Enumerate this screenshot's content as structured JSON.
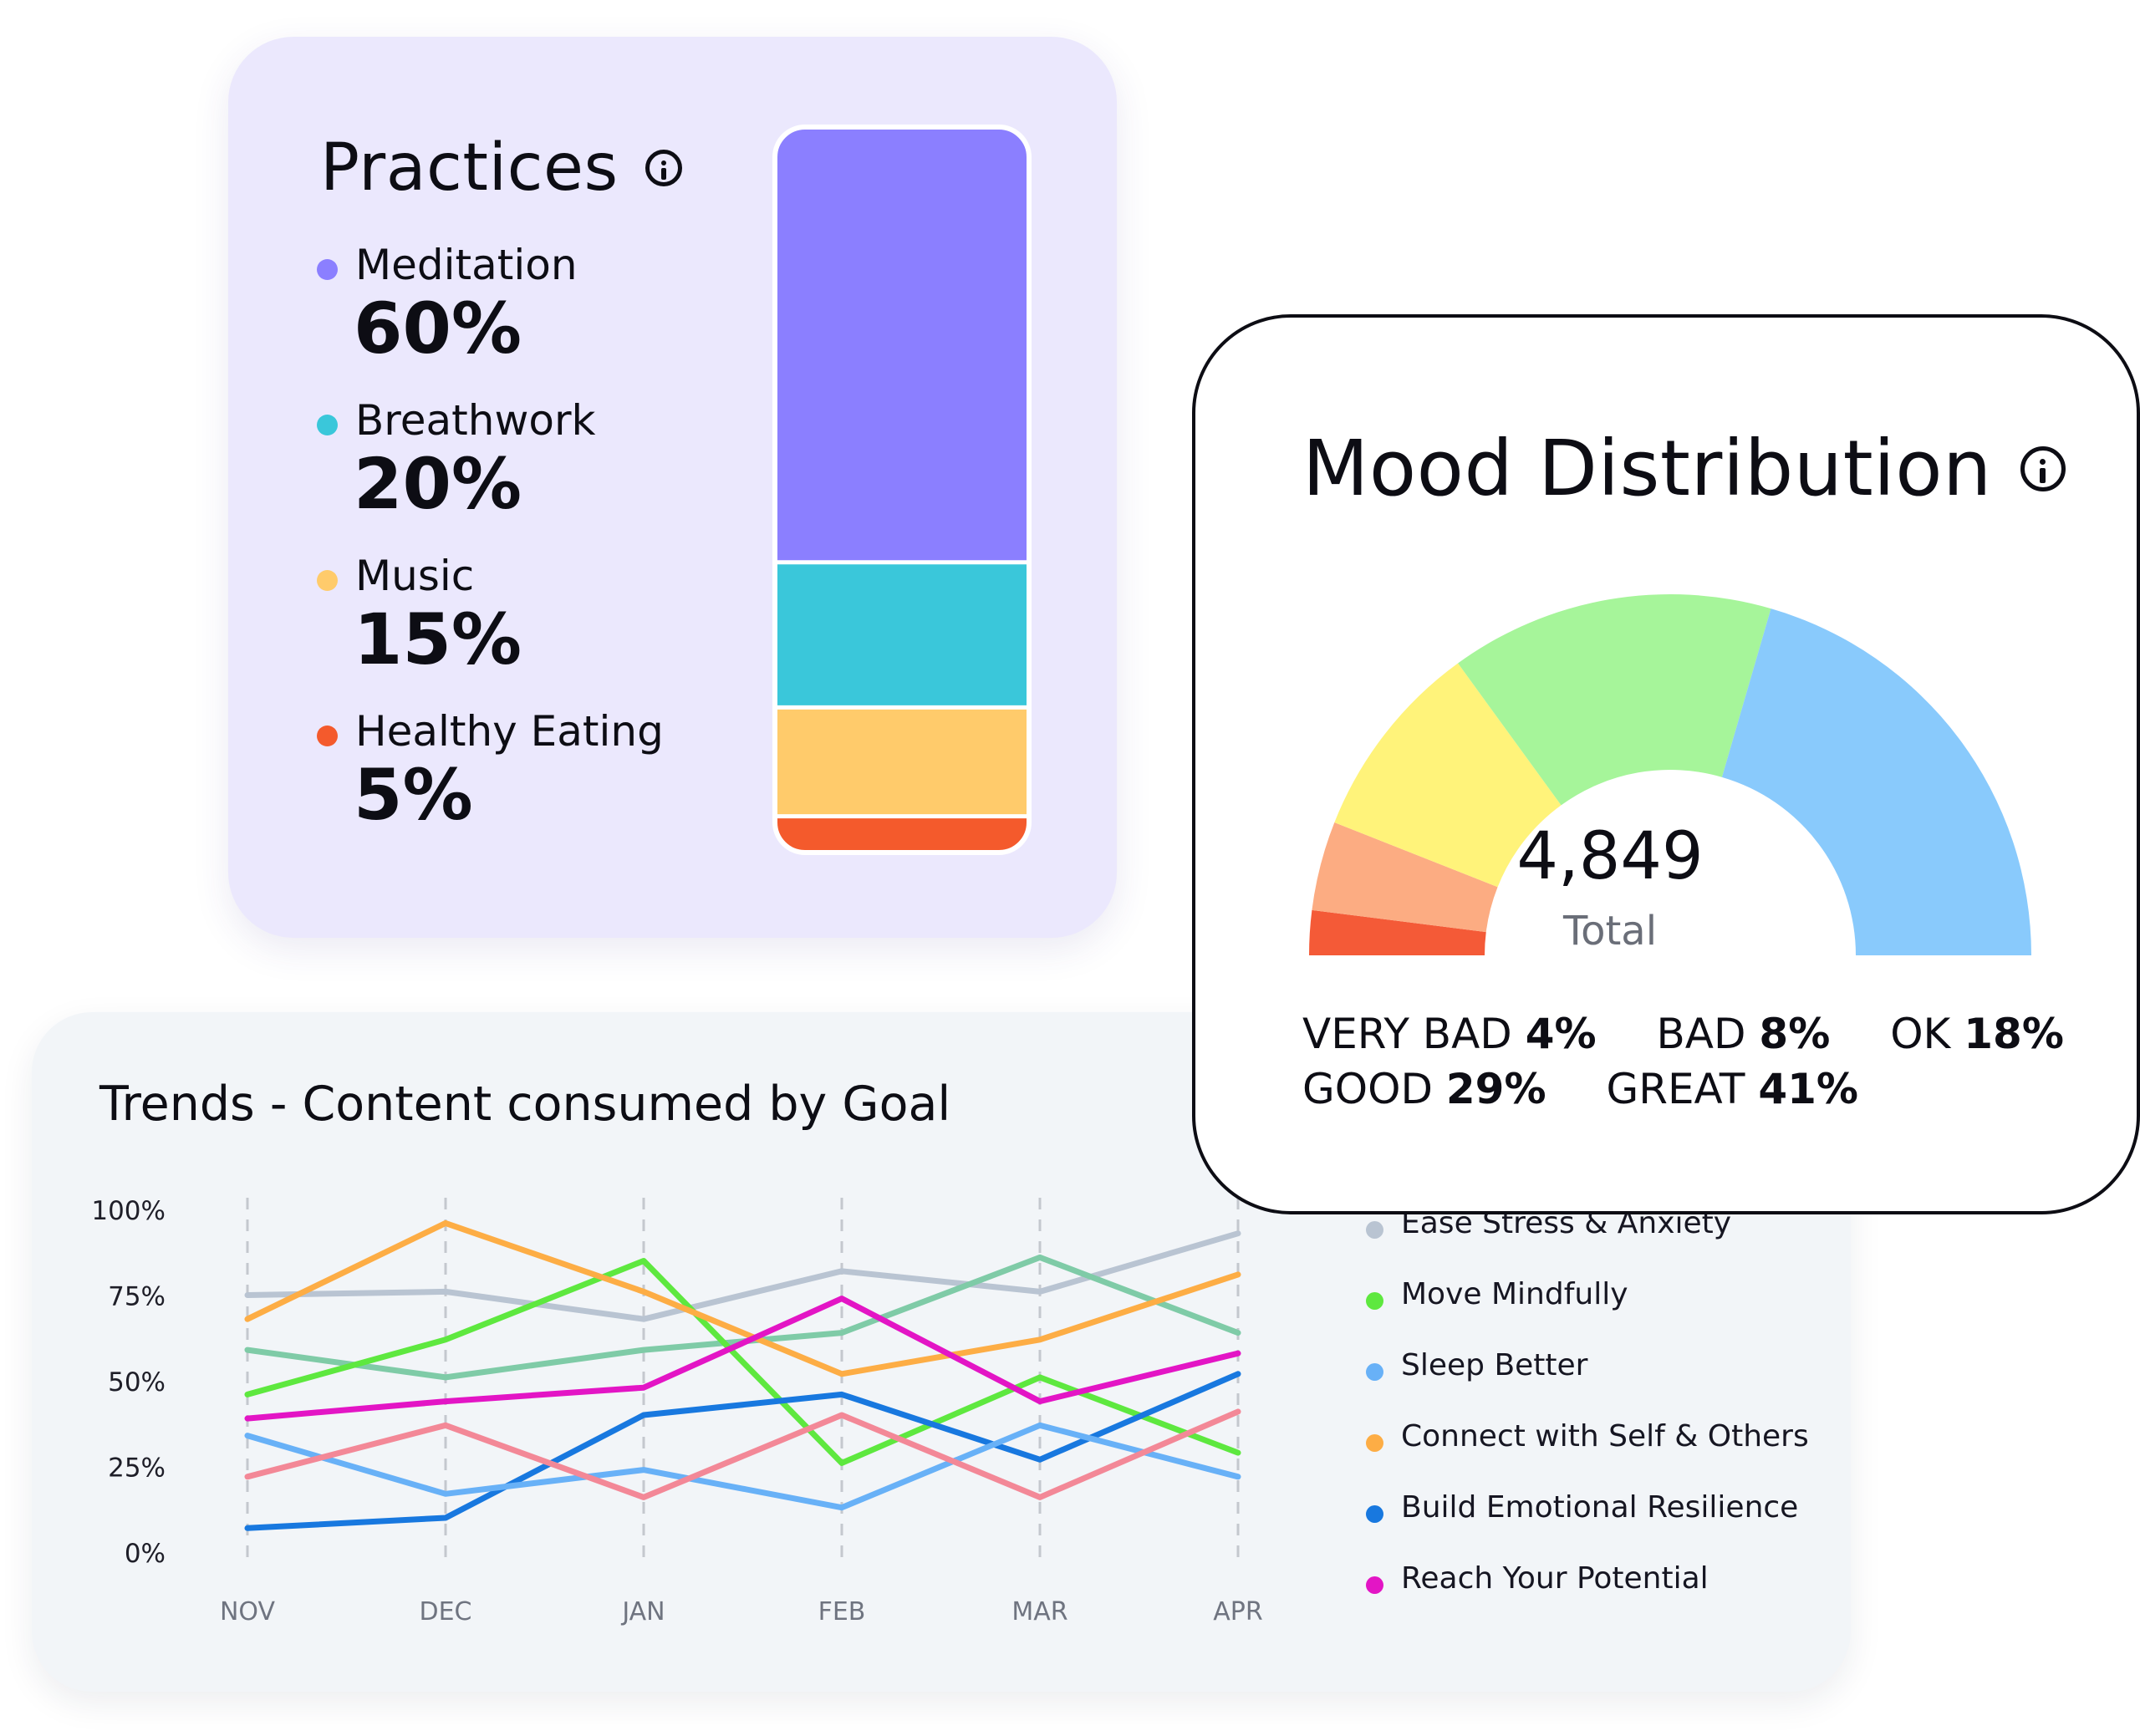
{
  "practices": {
    "title": "Practices",
    "items": [
      {
        "label": "Meditation",
        "percent": "60%",
        "value": 60,
        "color": "#8b7fff"
      },
      {
        "label": "Breathwork",
        "percent": "20%",
        "value": 20,
        "color": "#3ac7da"
      },
      {
        "label": "Music",
        "percent": "15%",
        "value": 15,
        "color": "#ffcb6b"
      },
      {
        "label": "Healthy Eating",
        "percent": "5%",
        "value": 5,
        "color": "#f45a2c"
      }
    ]
  },
  "mood": {
    "title": "Mood Distribution",
    "total_value": "4,849",
    "total_label": "Total",
    "stats": [
      {
        "label": "VERY BAD",
        "percent": "4%",
        "value": 4,
        "color": "#f45a37"
      },
      {
        "label": "BAD",
        "percent": "8%",
        "value": 8,
        "color": "#fcac82"
      },
      {
        "label": "OK",
        "percent": "18%",
        "value": 18,
        "color": "#fff37a"
      },
      {
        "label": "GOOD",
        "percent": "29%",
        "value": 29,
        "color": "#a6f59a"
      },
      {
        "label": "GREAT",
        "percent": "41%",
        "value": 41,
        "color": "#89cafc"
      }
    ]
  },
  "trends": {
    "title": "Trends - Content consumed by Goal",
    "y_ticks": [
      "100%",
      "75%",
      "50%",
      "25%",
      "0%"
    ],
    "x_ticks": [
      "NOV",
      "DEC",
      "JAN",
      "FEB",
      "MAR",
      "APR"
    ],
    "legend": [
      {
        "label": "Ease Stress & Anxiety",
        "color": "#b9c4d2"
      },
      {
        "label": "Move Mindfully",
        "color": "#5ee83f"
      },
      {
        "label": "Sleep Better",
        "color": "#68b1f7"
      },
      {
        "label": "Connect with Self & Others",
        "color": "#fdad45"
      },
      {
        "label": "Build Emotional Resilience",
        "color": "#1878df"
      },
      {
        "label": "Reach Your Potential",
        "color": "#e315c5"
      }
    ]
  },
  "chart_data": [
    {
      "type": "bar",
      "title": "Practices",
      "categories": [
        "Meditation",
        "Breathwork",
        "Music",
        "Healthy Eating"
      ],
      "values": [
        60,
        20,
        15,
        5
      ],
      "stacked": true
    },
    {
      "type": "pie",
      "title": "Mood Distribution",
      "categories": [
        "VERY BAD",
        "BAD",
        "OK",
        "GOOD",
        "GREAT"
      ],
      "values": [
        4,
        8,
        18,
        29,
        41
      ],
      "total": 4849
    },
    {
      "type": "line",
      "title": "Trends - Content consumed by Goal",
      "categories": [
        "NOV",
        "DEC",
        "JAN",
        "FEB",
        "MAR",
        "APR"
      ],
      "ylim": [
        0,
        100
      ],
      "series": [
        {
          "name": "Ease Stress & Anxiety",
          "color": "#b9c4d2",
          "values": [
            75,
            76,
            68,
            82,
            76,
            93
          ]
        },
        {
          "name": "",
          "color": "#7fcba7",
          "values": [
            59,
            51,
            59,
            64,
            86,
            64
          ]
        },
        {
          "name": "Move Mindfully",
          "color": "#5ee83f",
          "values": [
            46,
            62,
            85,
            26,
            51,
            29
          ]
        },
        {
          "name": "Connect with Self & Others",
          "color": "#fdad45",
          "values": [
            68,
            96,
            76,
            52,
            62,
            81
          ]
        },
        {
          "name": "Reach Your Potential",
          "color": "#e315c5",
          "values": [
            39,
            44,
            48,
            74,
            44,
            58
          ]
        },
        {
          "name": "Build Emotional Resilience",
          "color": "#1878df",
          "values": [
            7,
            10,
            40,
            46,
            27,
            52
          ]
        },
        {
          "name": "Sleep Better",
          "color": "#68b1f7",
          "values": [
            34,
            17,
            24,
            13,
            37,
            22
          ]
        },
        {
          "name": "",
          "color": "#f38897",
          "values": [
            22,
            37,
            16,
            40,
            16,
            41
          ]
        }
      ]
    }
  ]
}
